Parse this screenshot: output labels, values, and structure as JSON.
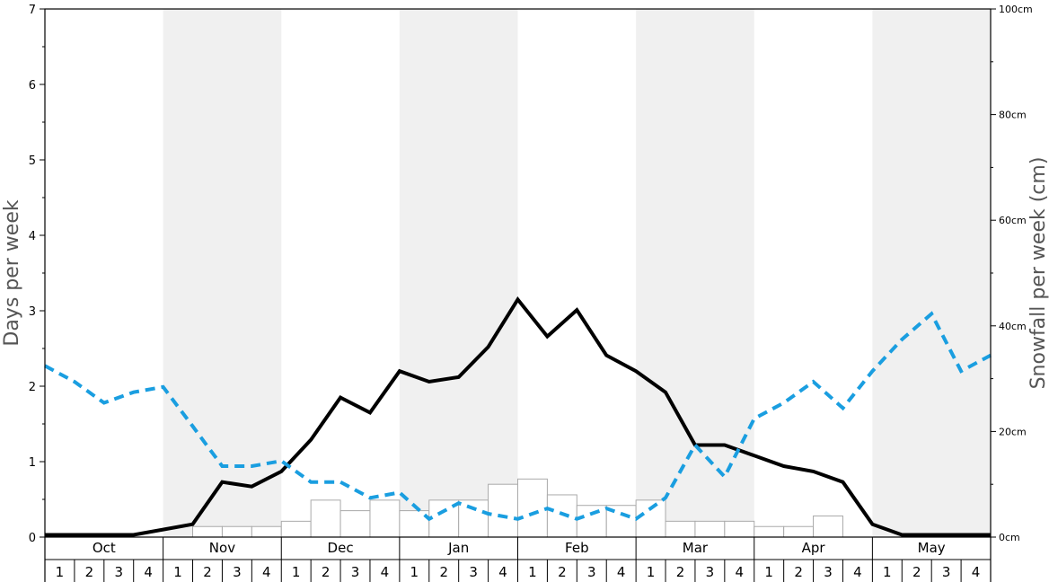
{
  "chart_data": {
    "type": "bar",
    "ylabel_left": "Days per week",
    "ylabel_right": "Snowfall per week (cm)",
    "left_axis": {
      "ylim": [
        0,
        7
      ],
      "ticks": [
        "0",
        "1",
        "2",
        "3",
        "4",
        "5",
        "6",
        "7"
      ]
    },
    "right_axis": {
      "ylim": [
        0,
        100
      ],
      "ticks": [
        "0cm",
        "20cm",
        "40cm",
        "60cm",
        "80cm",
        "100cm"
      ]
    },
    "months": [
      "Oct",
      "Nov",
      "Dec",
      "Jan",
      "Feb",
      "Mar",
      "Apr",
      "May"
    ],
    "week_labels": [
      "1",
      "2",
      "3",
      "4",
      "1",
      "2",
      "3",
      "4",
      "1",
      "2",
      "3",
      "4",
      "1",
      "2",
      "3",
      "4",
      "1",
      "2",
      "3",
      "4",
      "1",
      "2",
      "3",
      "4",
      "1",
      "2",
      "3",
      "4",
      "1",
      "2",
      "3",
      "4"
    ],
    "series": [
      {
        "style": "bars",
        "axis": "right",
        "color": "#ffffff",
        "values": [
          0,
          0,
          0,
          0,
          0,
          2,
          2,
          2,
          3,
          7,
          5,
          7,
          5,
          7,
          7,
          10,
          11,
          8,
          6,
          6,
          7,
          3,
          3,
          3,
          2,
          2,
          4,
          0,
          0,
          0,
          0,
          0
        ]
      },
      {
        "style": "solid-line",
        "axis": "left",
        "color": "#000000",
        "values": [
          0.03,
          0.03,
          0.03,
          0.03,
          0.1,
          0.17,
          0.73,
          0.67,
          0.87,
          1.29,
          1.85,
          1.65,
          2.2,
          2.06,
          2.12,
          2.52,
          3.15,
          2.66,
          3.01,
          2.41,
          2.2,
          1.92,
          1.22,
          1.22,
          1.08,
          0.94,
          0.87,
          0.73,
          0.17,
          0.03,
          0.03,
          0.03,
          0.03
        ]
      },
      {
        "style": "dashed-line",
        "axis": "left",
        "color": "#1a9ee0",
        "values": [
          2.27,
          2.06,
          1.78,
          1.92,
          1.99,
          1.47,
          0.94,
          0.94,
          1.01,
          0.73,
          0.73,
          0.52,
          0.59,
          0.24,
          0.45,
          0.31,
          0.24,
          0.38,
          0.24,
          0.38,
          0.24,
          0.52,
          1.22,
          0.8,
          1.57,
          1.78,
          2.06,
          1.71,
          2.2,
          2.62,
          2.96,
          2.2,
          2.41
        ]
      }
    ],
    "grid": false,
    "shading": "alternating months"
  }
}
